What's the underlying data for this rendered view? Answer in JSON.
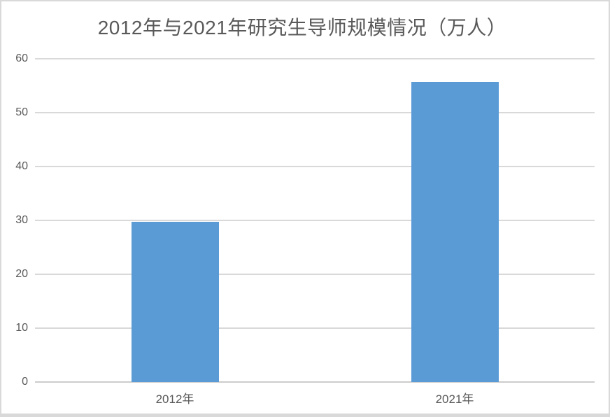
{
  "chart_data": {
    "type": "bar",
    "title": "2012年与2021年研究生导师规模情况（万人）",
    "categories": [
      "2012年",
      "2021年"
    ],
    "values": [
      29.8,
      55.7
    ],
    "xlabel": "",
    "ylabel": "",
    "ylim": [
      0,
      60
    ],
    "yticks": [
      0,
      10,
      20,
      30,
      40,
      50,
      60
    ],
    "grid": true,
    "legend_position": "none",
    "bar_color": "#5B9BD5",
    "gridline_color": "#D9D9D9",
    "axis_line_color": "#CCCCCC",
    "text_color": "#595959",
    "background_color": "#FFFFFF"
  }
}
